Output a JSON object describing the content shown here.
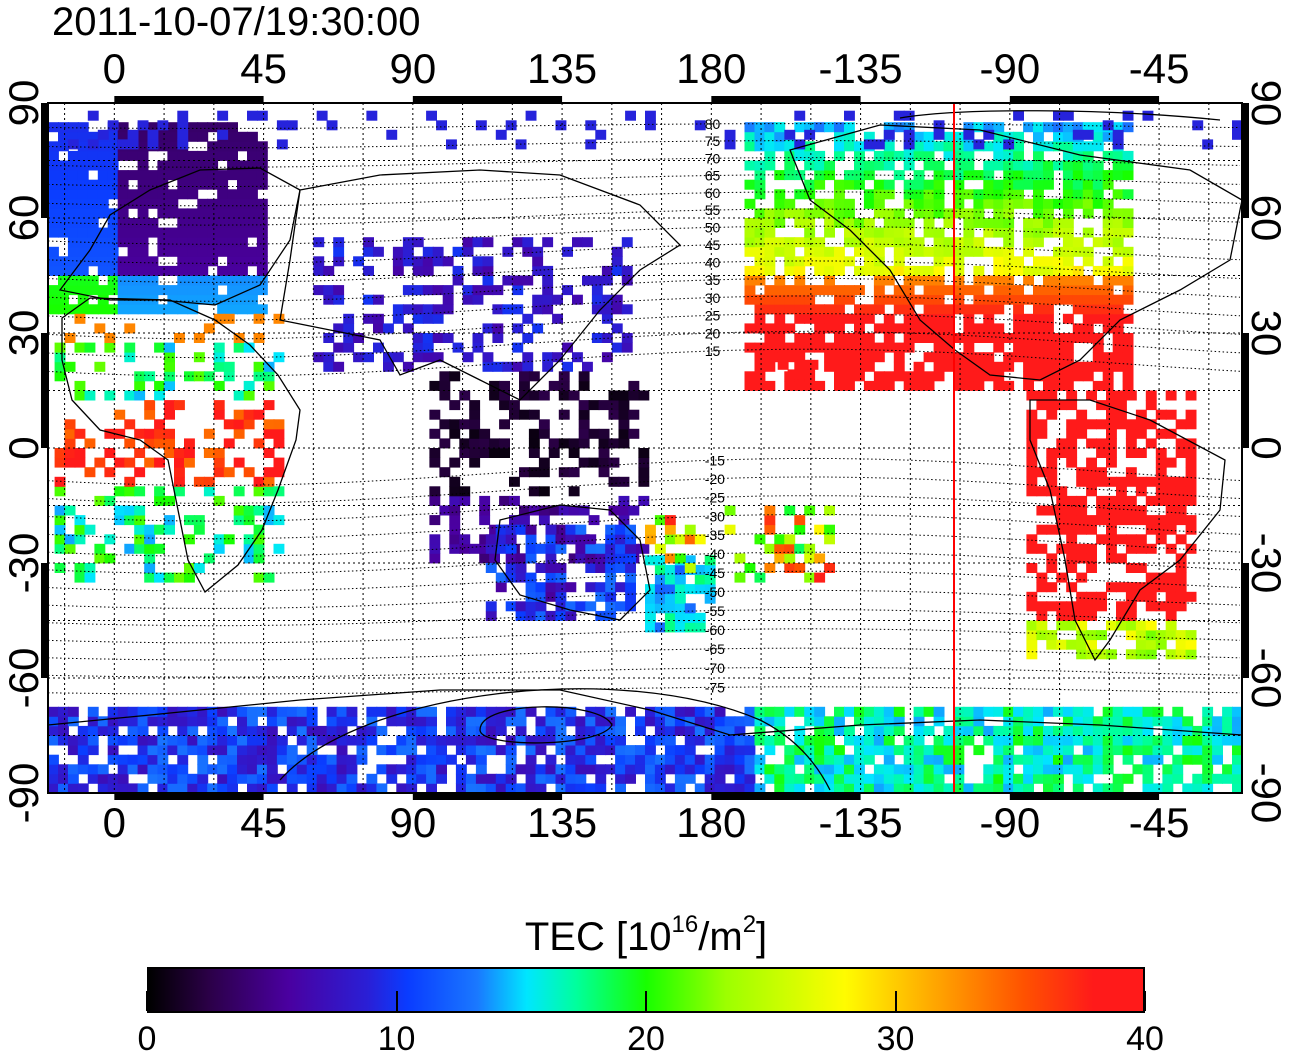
{
  "timestamp": "2011-10-07/19:30:00",
  "longitude_ticks": [
    "0",
    "45",
    "90",
    "135",
    "180",
    "-135",
    "-90",
    "-45"
  ],
  "latitude_ticks": [
    "90",
    "60",
    "30",
    "0",
    "-30",
    "-60",
    "-90"
  ],
  "dip_latitude_labels": [
    "80",
    "75",
    "70",
    "65",
    "60",
    "55",
    "50",
    "45",
    "40",
    "35",
    "30",
    "25",
    "20",
    "15",
    "-15",
    "-20",
    "-25",
    "-30",
    "-35",
    "-40",
    "-45",
    "-50",
    "-55",
    "-60",
    "-65",
    "-70",
    "-75"
  ],
  "colorbar": {
    "label_prefix": "TEC  [10",
    "label_exp": "16",
    "label_mid": "/m",
    "label_exp2": "2",
    "label_suffix": "]",
    "ticks": [
      "0",
      "10",
      "20",
      "30",
      "40"
    ],
    "min": 0,
    "max": 40
  },
  "map_data": {
    "type": "heatmap",
    "projection": "equirectangular",
    "lon_range": [
      -20,
      340
    ],
    "lat_range": [
      -90,
      90
    ],
    "terminator_longitude": -113,
    "regions": [
      {
        "name": "north-america",
        "tec": 27
      },
      {
        "name": "south-america",
        "tec": 40
      },
      {
        "name": "europe",
        "tec": 10
      },
      {
        "name": "africa",
        "tec": 30
      },
      {
        "name": "east-asia",
        "tec": 7
      },
      {
        "name": "southeast-asia",
        "tec": 1
      },
      {
        "name": "australia",
        "tec": 8
      },
      {
        "name": "new-zealand",
        "tec": 14
      },
      {
        "name": "antarctica-east",
        "tec": 8
      },
      {
        "name": "antarctica-west",
        "tec": 15
      }
    ],
    "colors": {
      "terminator": "#ff0000",
      "frame": "#000000"
    }
  }
}
